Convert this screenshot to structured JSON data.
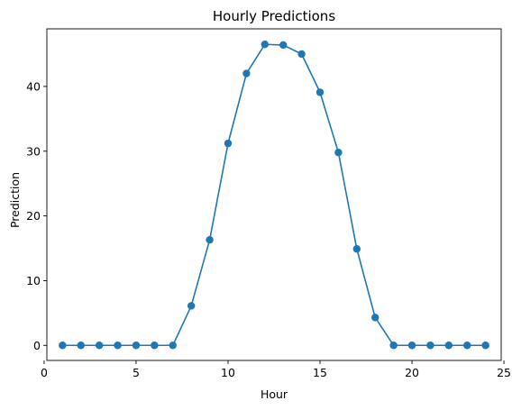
{
  "chart_data": {
    "type": "line",
    "title": "Hourly Predictions",
    "xlabel": "Hour",
    "ylabel": "Prediction",
    "xlim": [
      0.15,
      24.85
    ],
    "ylim": [
      -2.33,
      48.9
    ],
    "xticks": [
      0,
      5,
      10,
      15,
      20,
      25
    ],
    "yticks": [
      0,
      10,
      20,
      30,
      40
    ],
    "grid": false,
    "legend": false,
    "marker": "circle",
    "color": "#1f77b4",
    "series": [
      {
        "x": [
          1,
          2,
          3,
          4,
          5,
          6,
          7,
          8,
          9,
          10,
          11,
          12,
          13,
          14,
          15,
          16,
          17,
          18,
          19,
          20,
          21,
          22,
          23,
          24
        ],
        "y": [
          0,
          0,
          0,
          0,
          0,
          0,
          0,
          6.1,
          16.3,
          31.2,
          42,
          46.5,
          46.4,
          45,
          39.1,
          29.8,
          14.9,
          4.3,
          0,
          0,
          0,
          0,
          0,
          0
        ]
      }
    ]
  }
}
